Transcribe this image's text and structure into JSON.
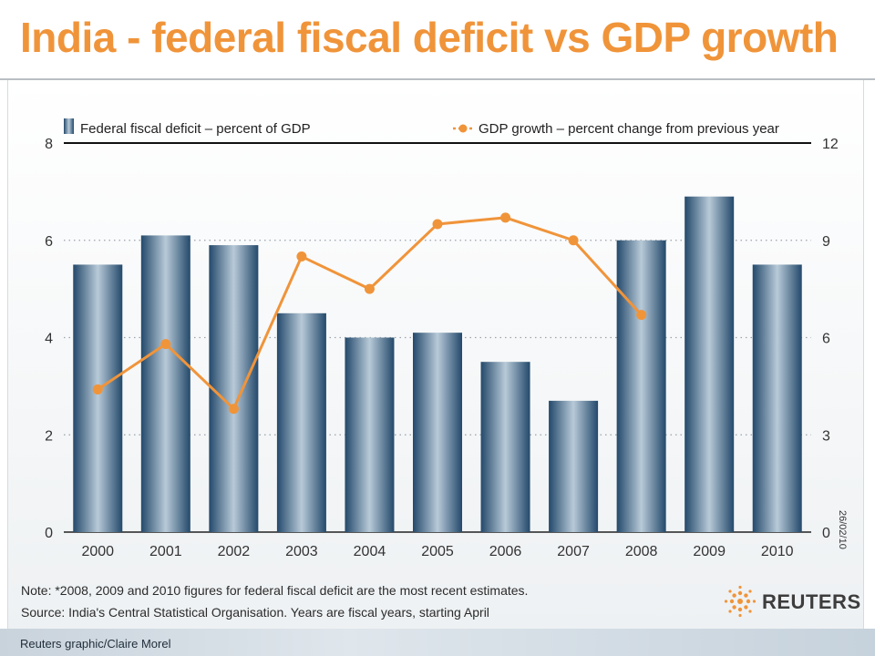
{
  "page": {
    "title": "India - federal fiscal deficit vs GDP growth",
    "note": "Note: *2008, 2009 and 2010 figures for federal fiscal deficit are the most recent estimates.",
    "source": "Source: India's Central Statistical Organisation. Years are fiscal years, starting April",
    "credit": "Reuters graphic/Claire Morel",
    "date_stamp": "26/02/10",
    "logo_text": "REUTERS"
  },
  "colors": {
    "title": "#f0943a",
    "bar_dark": "#23496b",
    "bar_light": "#b8cad8",
    "line": "#f0943a"
  },
  "chart_data": {
    "type": "bar",
    "categories": [
      "2000",
      "2001",
      "2002",
      "2003",
      "2004",
      "2005",
      "2006",
      "2007",
      "2008",
      "2009",
      "2010"
    ],
    "series": [
      {
        "name": "Federal fiscal deficit – percent of GDP",
        "type": "bar",
        "axis": "left",
        "values": [
          5.5,
          6.1,
          5.9,
          4.5,
          4.0,
          4.1,
          3.5,
          2.7,
          6.0,
          6.9,
          5.5
        ]
      },
      {
        "name": "GDP growth – percent change from previous year",
        "type": "line",
        "axis": "right",
        "values": [
          4.4,
          5.8,
          3.8,
          8.5,
          7.5,
          9.5,
          9.7,
          9.0,
          6.7,
          null,
          null
        ]
      }
    ],
    "y_left": {
      "lim": [
        0,
        8
      ],
      "ticks": [
        "0",
        "2",
        "4",
        "6",
        "8"
      ]
    },
    "y_right": {
      "lim": [
        0,
        12
      ],
      "ticks": [
        "0",
        "3",
        "6",
        "9",
        "12"
      ]
    },
    "grid": "horizontal dotted",
    "legend_position": "top"
  }
}
